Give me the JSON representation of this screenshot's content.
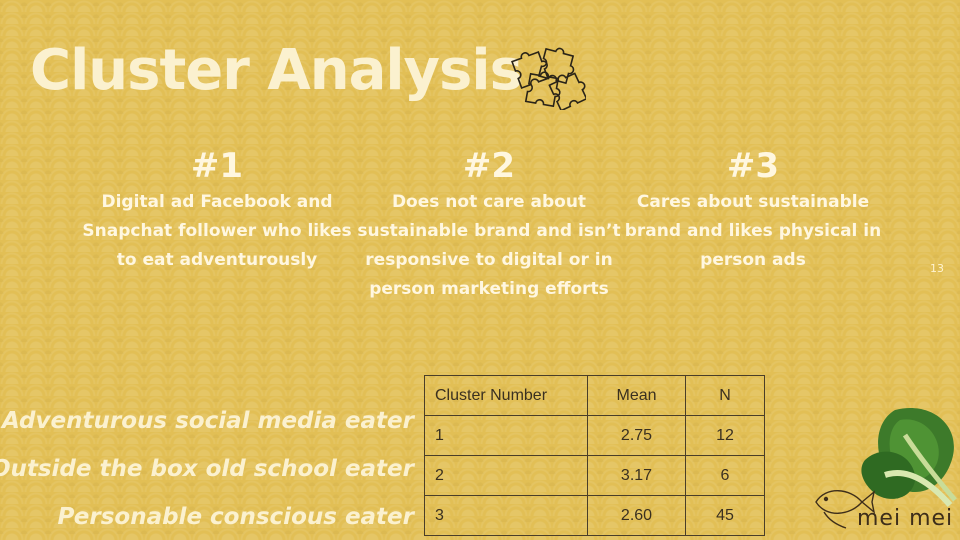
{
  "title": "Cluster Analysis",
  "clusters": [
    {
      "number": "#1",
      "description": "Digital ad Facebook and Snapchat follower who likes to eat adventurously"
    },
    {
      "number": "#2",
      "description": "Does not care about sustainable brand and isn’t responsive to digital or in person marketing efforts"
    },
    {
      "number": "#3",
      "description": "Cares about sustainable brand and likes physical in person ads"
    }
  ],
  "page_number": "13",
  "labels": [
    "Adventurous social media eater",
    "Outside the box old school eater",
    "Personable conscious eater"
  ],
  "table": {
    "headers": [
      "Cluster Number",
      "Mean",
      "N"
    ],
    "rows": [
      [
        "1",
        "2.75",
        "12"
      ],
      [
        "2",
        "3.17",
        "6"
      ],
      [
        "3",
        "2.60",
        "45"
      ]
    ]
  },
  "logo": {
    "text": "mei mei"
  },
  "icons": {
    "puzzle": "puzzle-icon",
    "leaf": "bok-choy-image",
    "logo": "fish-logo-icon"
  },
  "colors": {
    "background": "#e2bf55",
    "title": "#fbf1cf",
    "text": "#fff7e0",
    "table_text": "#3a3020"
  }
}
